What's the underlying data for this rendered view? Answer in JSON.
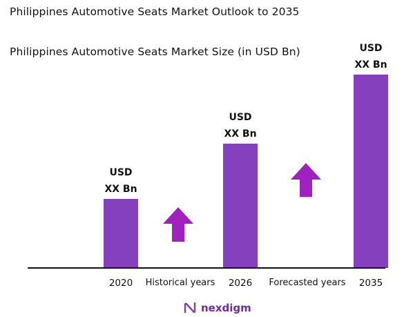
{
  "title": "Philippines Automotive Seats Market Outlook to 2035",
  "chart_data": {
    "type": "bar",
    "title": "Philippines Automotive Seats Market Size (in USD Bn)",
    "categories": [
      "2020",
      "2026",
      "2035"
    ],
    "values": [
      1.0,
      1.8,
      2.8
    ],
    "data_labels": [
      [
        "USD",
        "XX Bn"
      ],
      [
        "USD",
        "XX Bn"
      ],
      [
        "USD",
        "XX Bn"
      ]
    ],
    "between_labels": [
      "Historical years",
      "Forecasted years"
    ],
    "ylim": [
      0,
      3.0
    ],
    "grid": false,
    "legend": "none",
    "colors": {
      "bar": "#8540be",
      "arrow": "#a020c0",
      "baseline": "#111111"
    }
  },
  "logo": {
    "text": "nexdigm",
    "icon": "nexdigm-logo-icon",
    "color": "#6b2fa0"
  }
}
